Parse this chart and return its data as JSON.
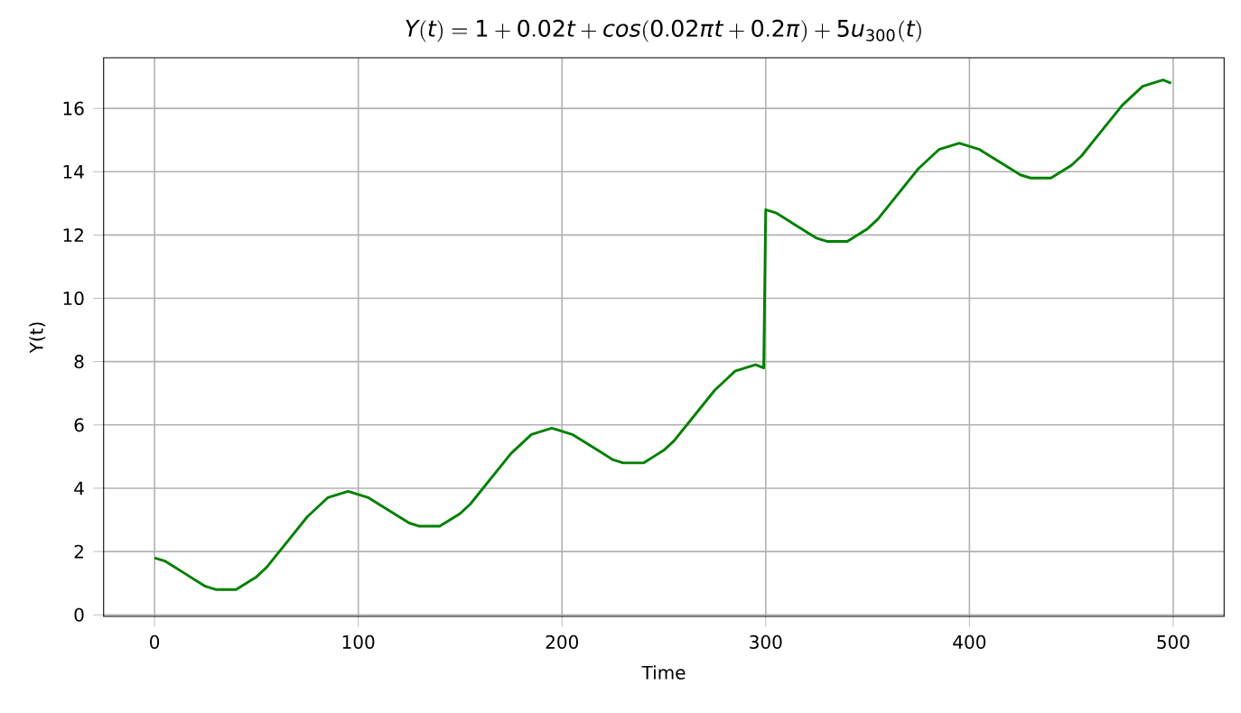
{
  "chart_data": {
    "type": "line",
    "title": "Y(t) = 1 + 0.02t + cos(0.02\\pi t + 0.2\\pi) + 5u_{300}(t)",
    "xlabel": "Time",
    "ylabel": "Y(t)",
    "x": [
      0,
      5,
      10,
      15,
      20,
      25,
      30,
      35,
      40,
      45,
      50,
      55,
      60,
      65,
      70,
      75,
      80,
      85,
      90,
      95,
      100,
      105,
      110,
      115,
      120,
      125,
      130,
      135,
      140,
      145,
      150,
      155,
      160,
      165,
      170,
      175,
      180,
      185,
      190,
      195,
      200,
      205,
      210,
      215,
      220,
      225,
      230,
      235,
      240,
      245,
      250,
      255,
      260,
      265,
      270,
      275,
      280,
      285,
      290,
      295,
      299,
      300,
      305,
      310,
      315,
      320,
      325,
      330,
      335,
      340,
      345,
      350,
      355,
      360,
      365,
      370,
      375,
      380,
      385,
      390,
      395,
      400,
      405,
      410,
      415,
      420,
      425,
      430,
      435,
      440,
      445,
      450,
      455,
      460,
      465,
      470,
      475,
      480,
      485,
      490,
      495,
      499
    ],
    "series": [
      {
        "color": "#008000",
        "values": [
          1.8,
          1.7,
          1.5,
          1.3,
          1.1,
          0.9,
          0.8,
          0.8,
          0.8,
          1.0,
          1.2,
          1.5,
          1.9,
          2.3,
          2.7,
          3.1,
          3.4,
          3.7,
          3.8,
          3.9,
          3.8,
          3.7,
          3.5,
          3.3,
          3.1,
          2.9,
          2.8,
          2.8,
          2.8,
          3.0,
          3.2,
          3.5,
          3.9,
          4.3,
          4.7,
          5.1,
          5.4,
          5.7,
          5.8,
          5.9,
          5.8,
          5.7,
          5.5,
          5.3,
          5.1,
          4.9,
          4.8,
          4.8,
          4.8,
          5.0,
          5.2,
          5.5,
          5.9,
          6.3,
          6.7,
          7.1,
          7.4,
          7.7,
          7.8,
          7.9,
          7.8,
          12.8,
          12.7,
          12.5,
          12.3,
          12.1,
          11.9,
          11.8,
          11.8,
          11.8,
          12.0,
          12.2,
          12.5,
          12.9,
          13.3,
          13.7,
          14.1,
          14.4,
          14.7,
          14.8,
          14.9,
          14.8,
          14.7,
          14.5,
          14.3,
          14.1,
          13.9,
          13.8,
          13.8,
          13.8,
          14.0,
          14.2,
          14.5,
          14.9,
          15.3,
          15.7,
          16.1,
          16.4,
          16.7,
          16.8,
          16.9,
          16.8
        ]
      }
    ],
    "xlim": [
      -25,
      525
    ],
    "ylim": [
      -0.05,
      17.6
    ],
    "xticks": [
      0,
      100,
      200,
      300,
      400,
      500
    ],
    "yticks": [
      0,
      2,
      4,
      6,
      8,
      10,
      12,
      14,
      16
    ],
    "grid": true,
    "marker": "none",
    "line_style": "solid"
  }
}
